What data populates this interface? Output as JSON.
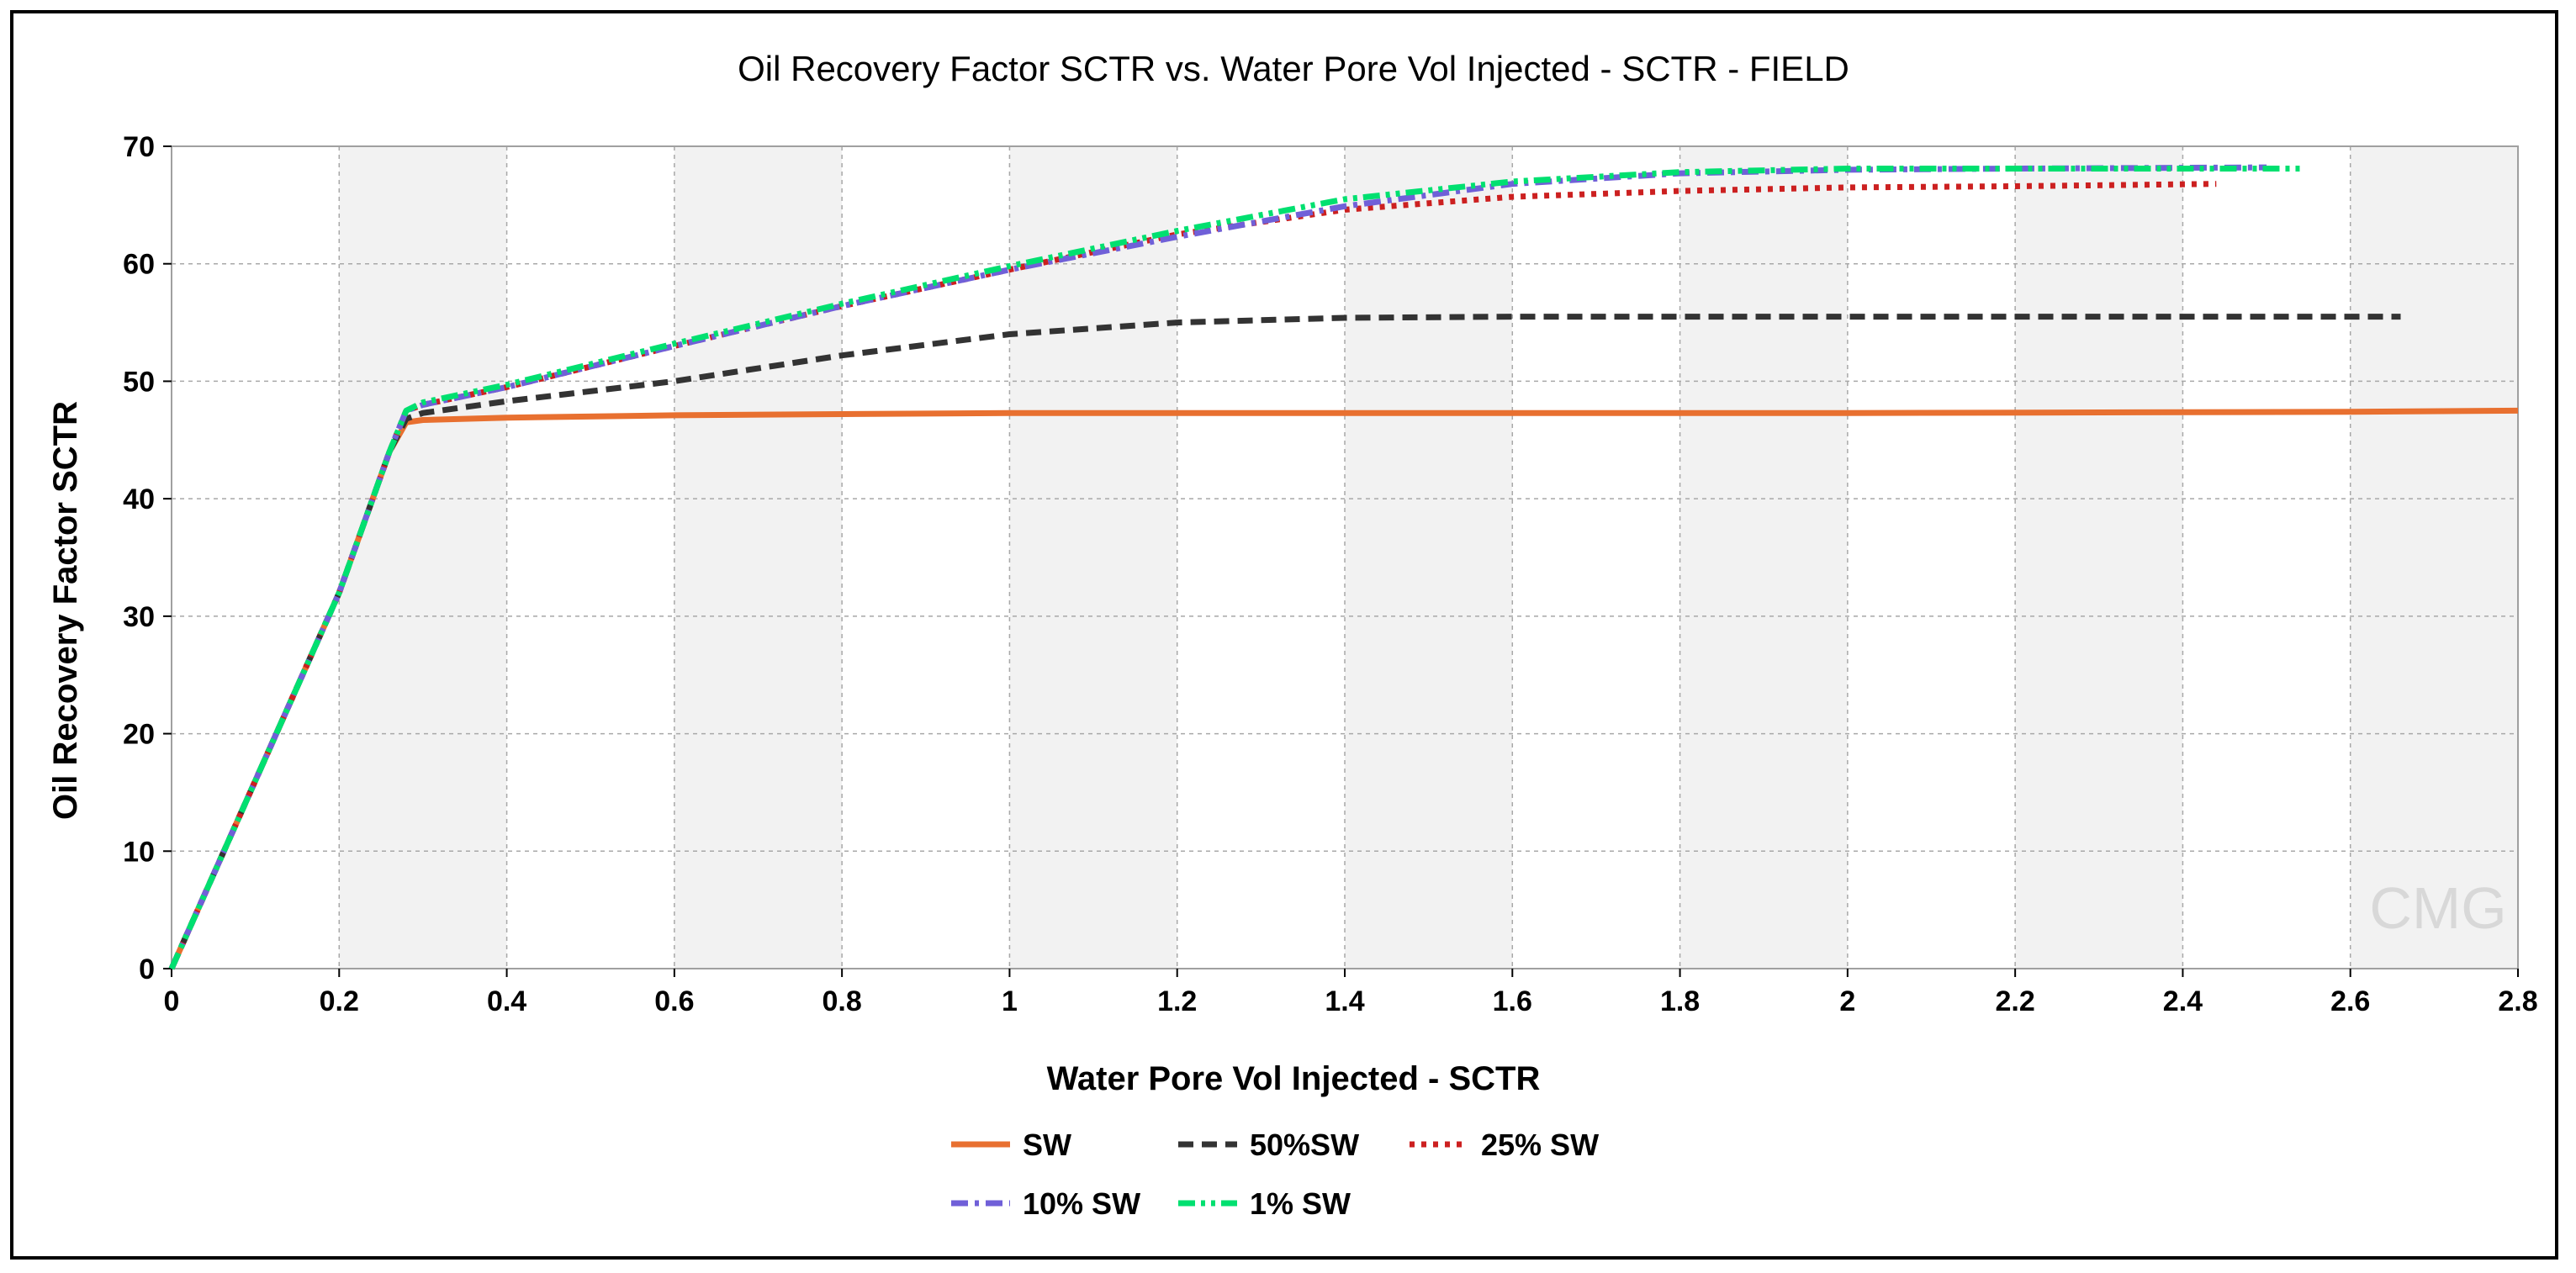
{
  "chart_data": {
    "type": "line",
    "title": "Oil Recovery Factor SCTR vs. Water Pore Vol Injected - SCTR - FIELD",
    "xlabel": "Water Pore Vol Injected - SCTR",
    "ylabel": "Oil Recovery Factor SCTR",
    "xlim": [
      0,
      2.8
    ],
    "ylim": [
      0,
      70
    ],
    "xticks": [
      "0",
      "0.2",
      "0.4",
      "0.6",
      "0.8",
      "1",
      "1.2",
      "1.4",
      "1.6",
      "1.8",
      "2",
      "2.2",
      "2.4",
      "2.6",
      "2.8"
    ],
    "yticks": [
      "0",
      "10",
      "20",
      "30",
      "40",
      "50",
      "60",
      "70"
    ],
    "grid": true,
    "legend_position": "bottom",
    "watermark": "CMG",
    "series": [
      {
        "name": "SW",
        "color": "#e87030",
        "dash": "solid",
        "points": [
          [
            0,
            0
          ],
          [
            0.1,
            16
          ],
          [
            0.2,
            32
          ],
          [
            0.26,
            44
          ],
          [
            0.28,
            46.5
          ],
          [
            0.3,
            46.7
          ],
          [
            0.4,
            46.9
          ],
          [
            0.6,
            47.1
          ],
          [
            0.8,
            47.2
          ],
          [
            1.0,
            47.3
          ],
          [
            1.4,
            47.3
          ],
          [
            2.0,
            47.3
          ],
          [
            2.6,
            47.4
          ],
          [
            2.8,
            47.5
          ]
        ]
      },
      {
        "name": "50%SW",
        "color": "#333333",
        "dash": "dashed",
        "points": [
          [
            0,
            0
          ],
          [
            0.1,
            16
          ],
          [
            0.2,
            32
          ],
          [
            0.26,
            44
          ],
          [
            0.28,
            46.8
          ],
          [
            0.3,
            47.3
          ],
          [
            0.4,
            48.3
          ],
          [
            0.6,
            50
          ],
          [
            0.8,
            52.2
          ],
          [
            1.0,
            54
          ],
          [
            1.2,
            55
          ],
          [
            1.4,
            55.4
          ],
          [
            1.6,
            55.5
          ],
          [
            2.0,
            55.5
          ],
          [
            2.4,
            55.5
          ],
          [
            2.66,
            55.5
          ]
        ]
      },
      {
        "name": "25% SW",
        "color": "#cc2020",
        "dash": "dotted",
        "points": [
          [
            0,
            0
          ],
          [
            0.1,
            16
          ],
          [
            0.2,
            32
          ],
          [
            0.26,
            44
          ],
          [
            0.28,
            47.5
          ],
          [
            0.3,
            48
          ],
          [
            0.4,
            49.5
          ],
          [
            0.6,
            53
          ],
          [
            0.8,
            56.4
          ],
          [
            1.0,
            59.5
          ],
          [
            1.2,
            62.5
          ],
          [
            1.4,
            64.6
          ],
          [
            1.6,
            65.7
          ],
          [
            1.8,
            66.2
          ],
          [
            2.0,
            66.5
          ],
          [
            2.2,
            66.6
          ],
          [
            2.44,
            66.8
          ]
        ]
      },
      {
        "name": "10% SW",
        "color": "#7060d8",
        "dash": "dash-dot",
        "points": [
          [
            0,
            0
          ],
          [
            0.1,
            16
          ],
          [
            0.2,
            32
          ],
          [
            0.26,
            44
          ],
          [
            0.28,
            47.5
          ],
          [
            0.3,
            48
          ],
          [
            0.4,
            49.5
          ],
          [
            0.6,
            53
          ],
          [
            0.8,
            56.4
          ],
          [
            1.0,
            59.5
          ],
          [
            1.2,
            62.3
          ],
          [
            1.4,
            64.9
          ],
          [
            1.6,
            66.8
          ],
          [
            1.8,
            67.7
          ],
          [
            2.0,
            68
          ],
          [
            2.2,
            68.1
          ],
          [
            2.5,
            68.2
          ]
        ]
      },
      {
        "name": "1% SW",
        "color": "#00e070",
        "dash": "dash-dot-dot",
        "points": [
          [
            0,
            0
          ],
          [
            0.1,
            16
          ],
          [
            0.2,
            32
          ],
          [
            0.26,
            44
          ],
          [
            0.28,
            47.5
          ],
          [
            0.3,
            48.2
          ],
          [
            0.4,
            49.7
          ],
          [
            0.6,
            53.2
          ],
          [
            0.8,
            56.6
          ],
          [
            1.0,
            59.8
          ],
          [
            1.2,
            62.8
          ],
          [
            1.4,
            65.5
          ],
          [
            1.6,
            67
          ],
          [
            1.8,
            67.8
          ],
          [
            2.0,
            68.1
          ],
          [
            2.2,
            68.1
          ],
          [
            2.4,
            68.1
          ],
          [
            2.54,
            68.1
          ]
        ]
      }
    ]
  }
}
